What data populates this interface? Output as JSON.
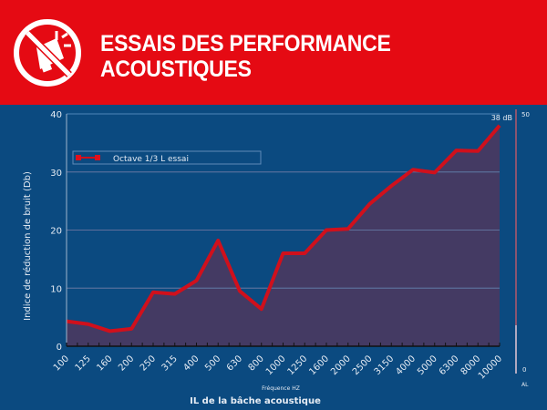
{
  "header": {
    "icon": "no-megaphone-icon",
    "title_line1": "ESSAIS DES PERFORMANCE",
    "title_line2": "ACOUSTIQUES",
    "color": "#e50a13"
  },
  "chart_data": {
    "type": "area",
    "ylabel": "Indice de réduction de bruit (Db)",
    "xlabel": "Fréquence HZ",
    "caption": "IL de la bâche acoustique",
    "ylim": [
      0,
      40
    ],
    "yticks": [
      "0",
      "10",
      "20",
      "30",
      "40"
    ],
    "grid": true,
    "legend_position": "top-left",
    "categories": [
      "100",
      "125",
      "160",
      "200",
      "250",
      "315",
      "400",
      "500",
      "630",
      "800",
      "1000",
      "1250",
      "1600",
      "2000",
      "2500",
      "3150",
      "4000",
      "5000",
      "6300",
      "8000",
      "10000"
    ],
    "series": [
      {
        "name": "Octave 1/3 L essai",
        "color": "#d0101c",
        "fill": "#443a63",
        "values": [
          4.3,
          3.8,
          2.6,
          3.0,
          9.3,
          9.0,
          11.3,
          18.2,
          9.5,
          6.4,
          16.0,
          16.0,
          20.0,
          20.2,
          24.5,
          27.6,
          30.4,
          29.9,
          33.7,
          33.6,
          38.0
        ]
      }
    ],
    "end_annotation": "38 dB",
    "side_scale": {
      "top": "50",
      "bottom": "0",
      "label": "AL"
    }
  }
}
